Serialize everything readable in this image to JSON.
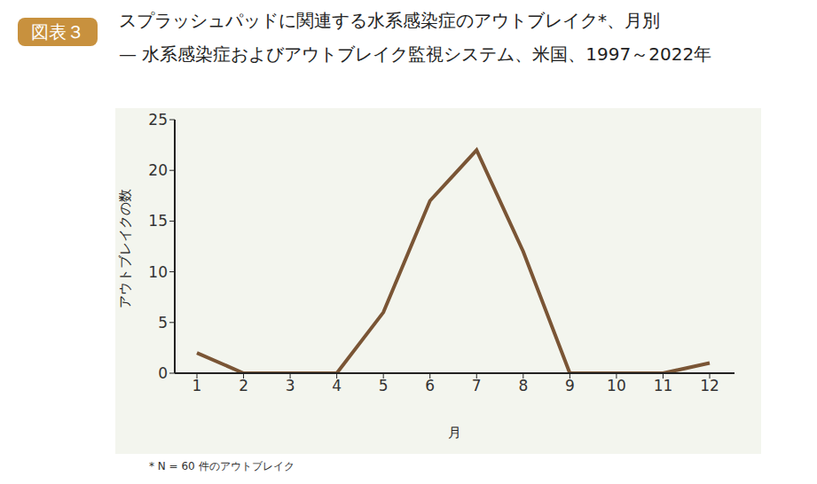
{
  "chart_data": {
    "type": "line",
    "figure_label": "図表３",
    "title": "スプラッシュパッドに関連する水系感染症のアウトブレイク*、月別",
    "subtitle": "— 水系感染症およびアウトブレイク監視システム、米国、1997～2022年",
    "x_label": "月",
    "y_label": "アウトブレイクの数",
    "footnote": "* N = 60 件のアウトブレイク",
    "categories": [
      "1",
      "2",
      "3",
      "4",
      "5",
      "6",
      "7",
      "8",
      "9",
      "10",
      "11",
      "12"
    ],
    "values": [
      2,
      0,
      0,
      0,
      6,
      17,
      22,
      12,
      0,
      0,
      0,
      1
    ],
    "color": "#7a5535",
    "ylim": [
      0,
      25
    ],
    "yticks": [
      0,
      5,
      10,
      15,
      20,
      25
    ],
    "grid": false
  }
}
